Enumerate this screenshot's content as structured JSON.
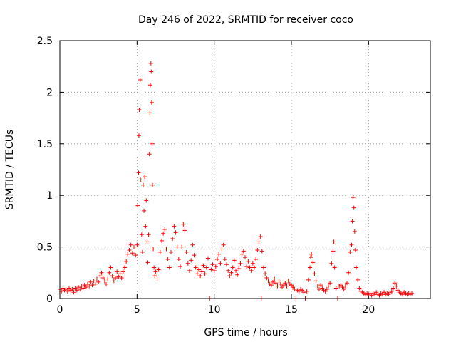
{
  "chart_data": {
    "type": "scatter",
    "title": "Day 246 of 2022, SRMTID for receiver coco",
    "xlabel": "GPS time / hours",
    "ylabel": "SRMTID / TECUs",
    "xlim": [
      0,
      24
    ],
    "ylim": [
      0,
      2.5
    ],
    "x_ticks": [
      0,
      5,
      10,
      15,
      20
    ],
    "x_tick_labels": [
      "0",
      "5",
      "10",
      "15",
      "20"
    ],
    "y_ticks": [
      0,
      0.5,
      1,
      1.5,
      2,
      2.5
    ],
    "y_tick_labels": [
      "0",
      "0.5",
      "1",
      "1.5",
      "2",
      "2.5"
    ],
    "grid": true,
    "marker": "+",
    "series_color": "#ff0000",
    "series": [
      {
        "name": "SRMTID",
        "points": [
          [
            0.0,
            0.09
          ],
          [
            0.1,
            0.07
          ],
          [
            0.2,
            0.1
          ],
          [
            0.3,
            0.08
          ],
          [
            0.4,
            0.09
          ],
          [
            0.5,
            0.07
          ],
          [
            0.6,
            0.1
          ],
          [
            0.7,
            0.08
          ],
          [
            0.8,
            0.09
          ],
          [
            0.9,
            0.06
          ],
          [
            1.0,
            0.1
          ],
          [
            1.1,
            0.08
          ],
          [
            1.2,
            0.11
          ],
          [
            1.3,
            0.09
          ],
          [
            1.4,
            0.12
          ],
          [
            1.5,
            0.1
          ],
          [
            1.6,
            0.13
          ],
          [
            1.7,
            0.11
          ],
          [
            1.8,
            0.14
          ],
          [
            1.9,
            0.12
          ],
          [
            2.0,
            0.16
          ],
          [
            2.1,
            0.13
          ],
          [
            2.2,
            0.17
          ],
          [
            2.3,
            0.14
          ],
          [
            2.4,
            0.19
          ],
          [
            2.5,
            0.16
          ],
          [
            2.6,
            0.22
          ],
          [
            2.7,
            0.25
          ],
          [
            2.8,
            0.2
          ],
          [
            2.9,
            0.17
          ],
          [
            3.0,
            0.14
          ],
          [
            3.1,
            0.19
          ],
          [
            3.2,
            0.25
          ],
          [
            3.3,
            0.3
          ],
          [
            3.4,
            0.22
          ],
          [
            3.5,
            0.17
          ],
          [
            3.6,
            0.2
          ],
          [
            3.7,
            0.26
          ],
          [
            3.8,
            0.21
          ],
          [
            3.9,
            0.24
          ],
          [
            4.0,
            0.2
          ],
          [
            4.1,
            0.26
          ],
          [
            4.2,
            0.3
          ],
          [
            4.3,
            0.36
          ],
          [
            4.4,
            0.43
          ],
          [
            4.5,
            0.47
          ],
          [
            4.6,
            0.52
          ],
          [
            4.7,
            0.44
          ],
          [
            4.8,
            0.5
          ],
          [
            4.9,
            0.42
          ],
          [
            5.0,
            0.52
          ],
          [
            5.05,
            0.9
          ],
          [
            5.1,
            1.22
          ],
          [
            5.12,
            1.58
          ],
          [
            5.15,
            1.83
          ],
          [
            5.2,
            2.12
          ],
          [
            5.25,
            1.15
          ],
          [
            5.3,
            0.62
          ],
          [
            5.35,
            0.45
          ],
          [
            5.4,
            1.1
          ],
          [
            5.45,
            0.85
          ],
          [
            5.5,
            1.18
          ],
          [
            5.55,
            0.7
          ],
          [
            5.6,
            0.95
          ],
          [
            5.65,
            0.55
          ],
          [
            5.7,
            0.35
          ],
          [
            5.75,
            0.62
          ],
          [
            5.8,
            1.4
          ],
          [
            5.83,
            1.8
          ],
          [
            5.86,
            2.07
          ],
          [
            5.9,
            2.28
          ],
          [
            5.92,
            2.2
          ],
          [
            5.95,
            1.9
          ],
          [
            5.98,
            1.5
          ],
          [
            6.0,
            1.1
          ],
          [
            6.05,
            0.48
          ],
          [
            6.1,
            0.3
          ],
          [
            6.15,
            0.22
          ],
          [
            6.2,
            0.26
          ],
          [
            6.3,
            0.19
          ],
          [
            6.4,
            0.28
          ],
          [
            6.5,
            0.45
          ],
          [
            6.6,
            0.56
          ],
          [
            6.7,
            0.63
          ],
          [
            6.8,
            0.67
          ],
          [
            6.9,
            0.48
          ],
          [
            7.0,
            0.38
          ],
          [
            7.1,
            0.3
          ],
          [
            7.2,
            0.45
          ],
          [
            7.3,
            0.58
          ],
          [
            7.4,
            0.7
          ],
          [
            7.5,
            0.64
          ],
          [
            7.6,
            0.5
          ],
          [
            7.7,
            0.38
          ],
          [
            7.8,
            0.31
          ],
          [
            7.9,
            0.5
          ],
          [
            8.0,
            0.72
          ],
          [
            8.1,
            0.66
          ],
          [
            8.2,
            0.45
          ],
          [
            8.3,
            0.34
          ],
          [
            8.4,
            0.27
          ],
          [
            8.5,
            0.37
          ],
          [
            8.6,
            0.52
          ],
          [
            8.7,
            0.42
          ],
          [
            8.8,
            0.3
          ],
          [
            8.9,
            0.24
          ],
          [
            9.0,
            0.28
          ],
          [
            9.1,
            0.22
          ],
          [
            9.2,
            0.26
          ],
          [
            9.3,
            0.32
          ],
          [
            9.4,
            0.24
          ],
          [
            9.5,
            0.3
          ],
          [
            9.6,
            0.39
          ],
          [
            9.7,
            0.0
          ],
          [
            9.8,
            0.28
          ],
          [
            9.9,
            0.33
          ],
          [
            10.0,
            0.27
          ],
          [
            10.1,
            0.31
          ],
          [
            10.2,
            0.38
          ],
          [
            10.3,
            0.43
          ],
          [
            10.4,
            0.34
          ],
          [
            10.5,
            0.48
          ],
          [
            10.6,
            0.52
          ],
          [
            10.7,
            0.38
          ],
          [
            10.8,
            0.33
          ],
          [
            10.9,
            0.27
          ],
          [
            11.0,
            0.22
          ],
          [
            11.1,
            0.25
          ],
          [
            11.2,
            0.3
          ],
          [
            11.3,
            0.37
          ],
          [
            11.4,
            0.27
          ],
          [
            11.5,
            0.23
          ],
          [
            11.6,
            0.29
          ],
          [
            11.7,
            0.34
          ],
          [
            11.8,
            0.43
          ],
          [
            11.9,
            0.46
          ],
          [
            12.0,
            0.4
          ],
          [
            12.1,
            0.31
          ],
          [
            12.2,
            0.36
          ],
          [
            12.3,
            0.3
          ],
          [
            12.4,
            0.27
          ],
          [
            12.5,
            0.34
          ],
          [
            12.6,
            0.3
          ],
          [
            12.7,
            0.38
          ],
          [
            12.8,
            0.47
          ],
          [
            12.9,
            0.55
          ],
          [
            13.0,
            0.6
          ],
          [
            13.05,
            0.0
          ],
          [
            13.1,
            0.46
          ],
          [
            13.2,
            0.3
          ],
          [
            13.3,
            0.24
          ],
          [
            13.4,
            0.2
          ],
          [
            13.5,
            0.17
          ],
          [
            13.6,
            0.14
          ],
          [
            13.7,
            0.13
          ],
          [
            13.8,
            0.16
          ],
          [
            13.9,
            0.19
          ],
          [
            14.0,
            0.15
          ],
          [
            14.1,
            0.12
          ],
          [
            14.2,
            0.17
          ],
          [
            14.3,
            0.14
          ],
          [
            14.4,
            0.11
          ],
          [
            14.5,
            0.13
          ],
          [
            14.6,
            0.15
          ],
          [
            14.7,
            0.12
          ],
          [
            14.8,
            0.17
          ],
          [
            14.9,
            0.14
          ],
          [
            15.0,
            0.13
          ],
          [
            15.1,
            0.11
          ],
          [
            15.2,
            0.09
          ],
          [
            15.3,
            0.0
          ],
          [
            15.4,
            0.08
          ],
          [
            15.5,
            0.07
          ],
          [
            15.6,
            0.09
          ],
          [
            15.7,
            0.08
          ],
          [
            15.8,
            0.06
          ],
          [
            15.9,
            0.0
          ],
          [
            16.0,
            0.07
          ],
          [
            16.1,
            0.18
          ],
          [
            16.2,
            0.3
          ],
          [
            16.25,
            0.4
          ],
          [
            16.3,
            0.43
          ],
          [
            16.4,
            0.35
          ],
          [
            16.5,
            0.24
          ],
          [
            16.6,
            0.17
          ],
          [
            16.7,
            0.12
          ],
          [
            16.8,
            0.09
          ],
          [
            16.9,
            0.13
          ],
          [
            17.0,
            0.1
          ],
          [
            17.1,
            0.08
          ],
          [
            17.2,
            0.07
          ],
          [
            17.3,
            0.09
          ],
          [
            17.4,
            0.12
          ],
          [
            17.5,
            0.15
          ],
          [
            17.6,
            0.34
          ],
          [
            17.7,
            0.46
          ],
          [
            17.75,
            0.55
          ],
          [
            17.8,
            0.3
          ],
          [
            17.9,
            0.1
          ],
          [
            18.0,
            0.0
          ],
          [
            18.1,
            0.12
          ],
          [
            18.2,
            0.13
          ],
          [
            18.3,
            0.11
          ],
          [
            18.4,
            0.09
          ],
          [
            18.5,
            0.12
          ],
          [
            18.6,
            0.15
          ],
          [
            18.7,
            0.25
          ],
          [
            18.8,
            0.45
          ],
          [
            18.9,
            0.52
          ],
          [
            18.95,
            0.75
          ],
          [
            19.0,
            0.98
          ],
          [
            19.05,
            0.88
          ],
          [
            19.1,
            0.65
          ],
          [
            19.15,
            0.47
          ],
          [
            19.2,
            0.3
          ],
          [
            19.3,
            0.18
          ],
          [
            19.4,
            0.1
          ],
          [
            19.5,
            0.07
          ],
          [
            19.6,
            0.06
          ],
          [
            19.7,
            0.05
          ],
          [
            19.8,
            0.04
          ],
          [
            19.9,
            0.05
          ],
          [
            20.0,
            0.04
          ],
          [
            20.1,
            0.05
          ],
          [
            20.2,
            0.03
          ],
          [
            20.3,
            0.05
          ],
          [
            20.4,
            0.04
          ],
          [
            20.5,
            0.06
          ],
          [
            20.6,
            0.04
          ],
          [
            20.7,
            0.03
          ],
          [
            20.8,
            0.05
          ],
          [
            20.9,
            0.04
          ],
          [
            21.0,
            0.06
          ],
          [
            21.1,
            0.04
          ],
          [
            21.2,
            0.05
          ],
          [
            21.3,
            0.04
          ],
          [
            21.4,
            0.06
          ],
          [
            21.5,
            0.07
          ],
          [
            21.6,
            0.1
          ],
          [
            21.7,
            0.15
          ],
          [
            21.8,
            0.12
          ],
          [
            21.9,
            0.08
          ],
          [
            22.0,
            0.06
          ],
          [
            22.1,
            0.05
          ],
          [
            22.2,
            0.04
          ],
          [
            22.3,
            0.06
          ],
          [
            22.4,
            0.05
          ],
          [
            22.5,
            0.04
          ],
          [
            22.6,
            0.05
          ],
          [
            22.7,
            0.04
          ],
          [
            22.8,
            0.05
          ]
        ]
      }
    ]
  }
}
